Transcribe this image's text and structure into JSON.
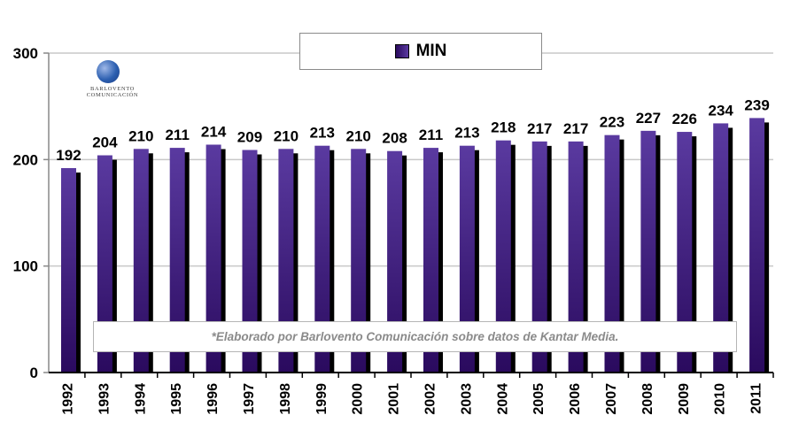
{
  "logo": {
    "text": "BARLOVENTO COMUNICACIÓN",
    "icon": "globe-swoosh-icon"
  },
  "note": "*Elaborado por Barlovento Comunicación sobre datos de Kantar Media.",
  "colors": {
    "bar": "#2a0a5e",
    "bar_light": "#5a3aa0",
    "shadow": "#000000",
    "grid": "#c8c8c8"
  },
  "chart_data": {
    "type": "bar",
    "title": "",
    "xlabel": "",
    "ylabel": "",
    "categories": [
      "1992",
      "1993",
      "1994",
      "1995",
      "1996",
      "1997",
      "1998",
      "1999",
      "2000",
      "2001",
      "2002",
      "2003",
      "2004",
      "2005",
      "2006",
      "2007",
      "2008",
      "2009",
      "2010",
      "2011"
    ],
    "series": [
      {
        "name": "MIN",
        "values": [
          192,
          204,
          210,
          211,
          214,
          209,
          210,
          213,
          210,
          208,
          211,
          213,
          218,
          217,
          217,
          223,
          227,
          226,
          234,
          239
        ]
      }
    ],
    "ylim": [
      0,
      300
    ],
    "yticks": [
      0,
      100,
      200,
      300
    ],
    "data_labels": true,
    "grid": true,
    "legend_position": "top-center"
  }
}
